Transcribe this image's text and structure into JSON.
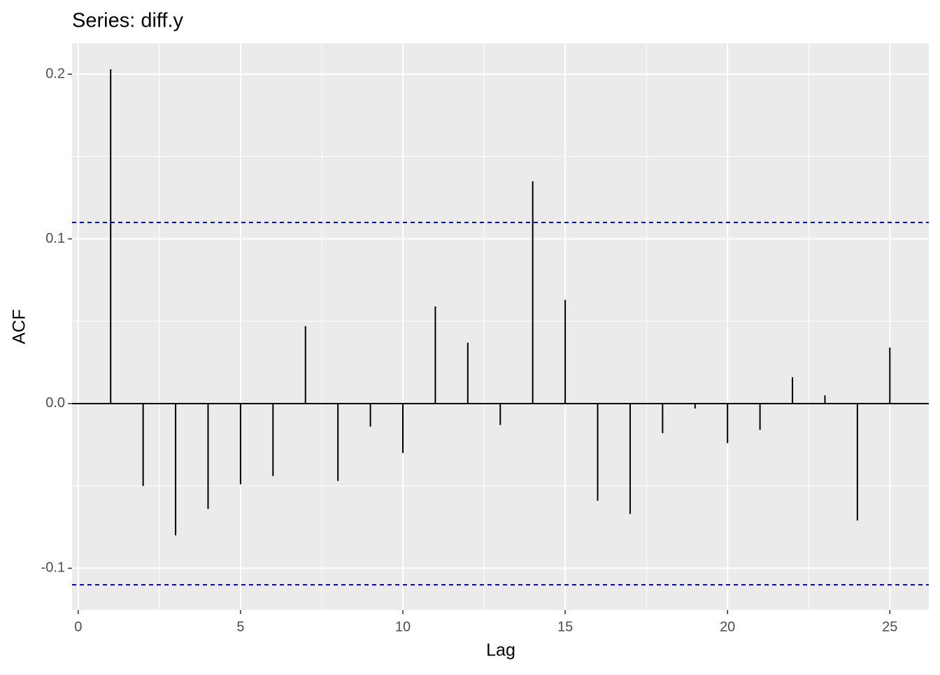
{
  "chart_data": {
    "type": "acf",
    "title": "Series: diff.y",
    "x_label": "Lag",
    "y_label": "ACF",
    "x": [
      1,
      2,
      3,
      4,
      5,
      6,
      7,
      8,
      9,
      10,
      11,
      12,
      13,
      14,
      15,
      16,
      17,
      18,
      19,
      20,
      21,
      22,
      23,
      24,
      25
    ],
    "values": [
      0.203,
      -0.05,
      -0.08,
      -0.064,
      -0.049,
      -0.044,
      0.047,
      -0.047,
      -0.014,
      -0.03,
      0.059,
      0.037,
      -0.013,
      0.135,
      0.063,
      -0.059,
      -0.067,
      -0.018,
      -0.003,
      -0.024,
      -0.016,
      0.016,
      0.005,
      -0.071,
      0.034
    ],
    "color": "#000000",
    "confidence_bounds": [
      0.11,
      -0.11
    ],
    "confidence_color": "#0000ff",
    "xlim": [
      -0.19,
      26.2
    ],
    "xticks": [
      0,
      5,
      10,
      15,
      20,
      25
    ],
    "ylim": [
      -0.1253,
      0.2187
    ],
    "yticks": [
      -0.1,
      {
        "value": 0,
        "label": "0.0"
      },
      0.1,
      0.2
    ],
    "grid": true
  }
}
